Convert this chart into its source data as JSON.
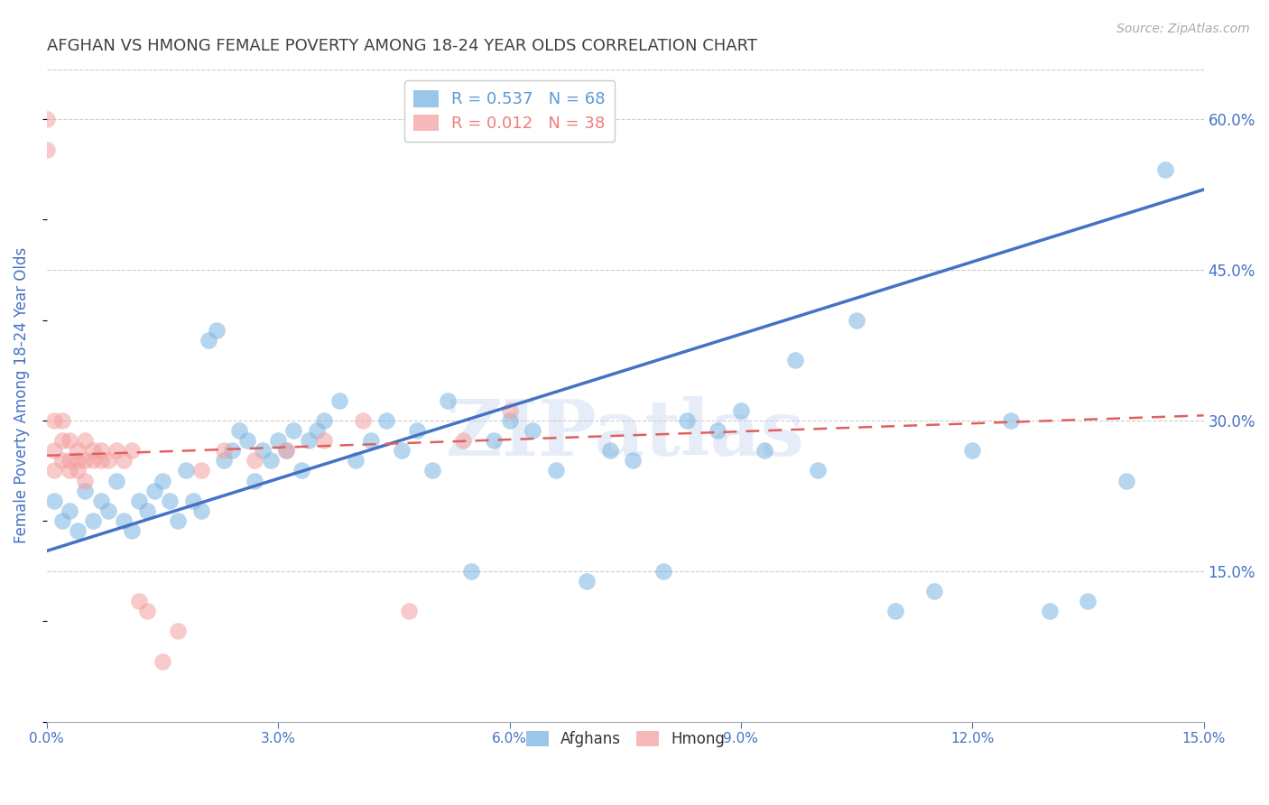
{
  "title": "AFGHAN VS HMONG FEMALE POVERTY AMONG 18-24 YEAR OLDS CORRELATION CHART",
  "source": "Source: ZipAtlas.com",
  "ylabel": "Female Poverty Among 18-24 Year Olds",
  "xlim": [
    0.0,
    0.15
  ],
  "ylim": [
    0.0,
    0.65
  ],
  "xticks": [
    0.0,
    0.03,
    0.06,
    0.09,
    0.12,
    0.15
  ],
  "yticks_right": [
    0.15,
    0.3,
    0.45,
    0.6
  ],
  "ytick_labels_right": [
    "15.0%",
    "30.0%",
    "45.0%",
    "60.0%"
  ],
  "xtick_labels": [
    "0.0%",
    "3.0%",
    "6.0%",
    "9.0%",
    "12.0%",
    "15.0%"
  ],
  "legend_entries": [
    {
      "label": "R = 0.537   N = 68",
      "color": "#5b9bd5"
    },
    {
      "label": "R = 0.012   N = 38",
      "color": "#ed7d7d"
    }
  ],
  "watermark_text": "ZIPatlas",
  "afghan_color": "#7ab3e0",
  "hmong_color": "#f4a0a0",
  "afghan_line_color": "#4472c4",
  "hmong_line_color": "#e06060",
  "background_color": "#ffffff",
  "grid_color": "#cccccc",
  "tick_label_color": "#4472c4",
  "title_color": "#404040",
  "afghans_x": [
    0.001,
    0.002,
    0.003,
    0.004,
    0.005,
    0.006,
    0.007,
    0.008,
    0.009,
    0.01,
    0.011,
    0.012,
    0.013,
    0.014,
    0.015,
    0.016,
    0.017,
    0.018,
    0.019,
    0.02,
    0.021,
    0.022,
    0.023,
    0.024,
    0.025,
    0.026,
    0.027,
    0.028,
    0.029,
    0.03,
    0.031,
    0.032,
    0.033,
    0.034,
    0.035,
    0.036,
    0.038,
    0.04,
    0.042,
    0.044,
    0.046,
    0.048,
    0.05,
    0.052,
    0.055,
    0.058,
    0.06,
    0.063,
    0.066,
    0.07,
    0.073,
    0.076,
    0.08,
    0.083,
    0.087,
    0.09,
    0.093,
    0.097,
    0.1,
    0.105,
    0.11,
    0.115,
    0.12,
    0.125,
    0.13,
    0.135,
    0.14,
    0.145
  ],
  "afghans_y": [
    0.22,
    0.2,
    0.21,
    0.19,
    0.23,
    0.2,
    0.22,
    0.21,
    0.24,
    0.2,
    0.19,
    0.22,
    0.21,
    0.23,
    0.24,
    0.22,
    0.2,
    0.25,
    0.22,
    0.21,
    0.38,
    0.39,
    0.26,
    0.27,
    0.29,
    0.28,
    0.24,
    0.27,
    0.26,
    0.28,
    0.27,
    0.29,
    0.25,
    0.28,
    0.29,
    0.3,
    0.32,
    0.26,
    0.28,
    0.3,
    0.27,
    0.29,
    0.25,
    0.32,
    0.15,
    0.28,
    0.3,
    0.29,
    0.25,
    0.14,
    0.27,
    0.26,
    0.15,
    0.3,
    0.29,
    0.31,
    0.27,
    0.36,
    0.25,
    0.4,
    0.11,
    0.13,
    0.27,
    0.3,
    0.11,
    0.12,
    0.24,
    0.55
  ],
  "hmong_x": [
    0.0,
    0.0,
    0.001,
    0.001,
    0.001,
    0.002,
    0.002,
    0.002,
    0.003,
    0.003,
    0.003,
    0.004,
    0.004,
    0.004,
    0.005,
    0.005,
    0.005,
    0.006,
    0.006,
    0.007,
    0.007,
    0.008,
    0.009,
    0.01,
    0.011,
    0.012,
    0.013,
    0.015,
    0.017,
    0.02,
    0.023,
    0.027,
    0.031,
    0.036,
    0.041,
    0.047,
    0.054,
    0.06
  ],
  "hmong_y": [
    0.57,
    0.6,
    0.27,
    0.3,
    0.25,
    0.28,
    0.26,
    0.3,
    0.26,
    0.28,
    0.25,
    0.27,
    0.25,
    0.26,
    0.26,
    0.28,
    0.24,
    0.26,
    0.27,
    0.26,
    0.27,
    0.26,
    0.27,
    0.26,
    0.27,
    0.12,
    0.11,
    0.06,
    0.09,
    0.25,
    0.27,
    0.26,
    0.27,
    0.28,
    0.3,
    0.11,
    0.28,
    0.31
  ],
  "afghan_regline_x": [
    0.0,
    0.15
  ],
  "afghan_regline_y": [
    0.17,
    0.53
  ],
  "hmong_regline_x": [
    0.0,
    0.15
  ],
  "hmong_regline_y": [
    0.265,
    0.305
  ]
}
